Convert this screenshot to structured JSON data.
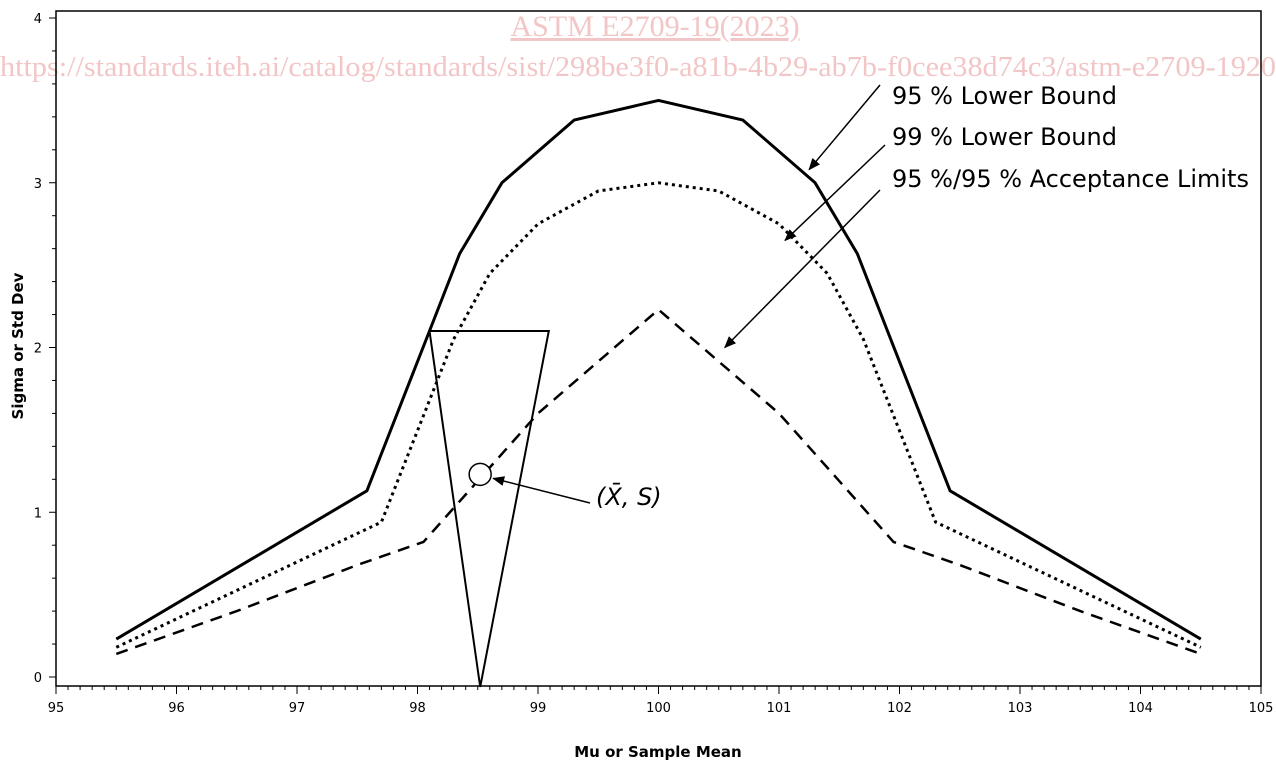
{
  "watermark": {
    "line1": "ASTM E2709-19(2023)",
    "line2": "https://standards.iteh.ai/catalog/standards/sist/298be3f0-a81b-4b29-ab7b-f0cee38d74c3/astm-e2709-1920"
  },
  "chart_data": {
    "type": "line",
    "title": "",
    "xlabel": "Mu or Sample Mean",
    "ylabel": "Sigma or Std Dev",
    "xlim": [
      95,
      105
    ],
    "ylim": [
      0,
      4
    ],
    "xticks": [
      95,
      96,
      97,
      98,
      99,
      100,
      101,
      102,
      103,
      104,
      105
    ],
    "yticks": [
      0,
      1,
      2,
      3,
      4
    ],
    "grid": false,
    "series": [
      {
        "name": "95 % Lower Bound",
        "style": "solid",
        "points": [
          [
            95.5,
            0.23
          ],
          [
            97.58,
            1.13
          ],
          [
            98.1,
            2.1
          ],
          [
            98.35,
            2.57
          ],
          [
            98.7,
            3.0
          ],
          [
            99.3,
            3.38
          ],
          [
            100.0,
            3.5
          ],
          [
            100.7,
            3.38
          ],
          [
            101.3,
            3.0
          ],
          [
            101.65,
            2.57
          ],
          [
            101.9,
            2.1
          ],
          [
            102.42,
            1.13
          ],
          [
            104.5,
            0.23
          ]
        ]
      },
      {
        "name": "99 % Lower Bound",
        "style": "dotted",
        "points": [
          [
            95.5,
            0.18
          ],
          [
            97.7,
            0.94
          ],
          [
            98.3,
            2.05
          ],
          [
            98.6,
            2.45
          ],
          [
            99.0,
            2.75
          ],
          [
            99.5,
            2.95
          ],
          [
            100.0,
            3.0
          ],
          [
            100.5,
            2.95
          ],
          [
            101.0,
            2.75
          ],
          [
            101.4,
            2.45
          ],
          [
            101.7,
            2.05
          ],
          [
            102.3,
            0.94
          ],
          [
            104.5,
            0.18
          ]
        ]
      },
      {
        "name": "95 %/95 % Acceptance Limits",
        "style": "dashed",
        "points": [
          [
            95.5,
            0.14
          ],
          [
            96.5,
            0.4
          ],
          [
            97.5,
            0.68
          ],
          [
            98.05,
            0.82
          ],
          [
            99.0,
            1.6
          ],
          [
            100.0,
            2.23
          ],
          [
            101.0,
            1.6
          ],
          [
            101.95,
            0.82
          ],
          [
            102.5,
            0.68
          ],
          [
            103.5,
            0.4
          ],
          [
            104.5,
            0.14
          ]
        ]
      }
    ],
    "triangle": [
      [
        98.1,
        2.1
      ],
      [
        99.09,
        2.1
      ],
      [
        98.52,
        -0.06
      ]
    ],
    "sample_point": {
      "x": 98.52,
      "y": 1.23
    },
    "annotations": [
      {
        "text": "95 % Lower Bound",
        "points_to": [
          101.25,
          3.08
        ]
      },
      {
        "text": "99 % Lower Bound",
        "points_to": [
          101.05,
          2.65
        ]
      },
      {
        "text": "95 %/95 % Acceptance Limits",
        "points_to": [
          100.55,
          2.0
        ]
      }
    ],
    "sample_label": {
      "text": "(X̄, S)"
    }
  }
}
